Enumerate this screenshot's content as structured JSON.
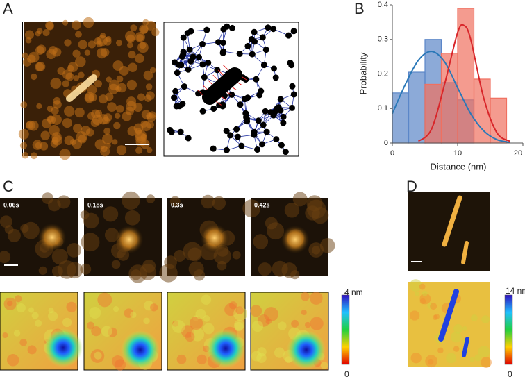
{
  "panel_labels": {
    "a": "A",
    "b": "B",
    "c": "C",
    "d": "D"
  },
  "panel_c": {
    "times": [
      "0.06s",
      "0.18s",
      "0.3s",
      "0.42s"
    ],
    "colorbar_max": "4 nm",
    "colorbar_min": "0"
  },
  "panel_d": {
    "colorbar_max": "14 nm",
    "colorbar_min": "0"
  },
  "chart_data": {
    "type": "histogram",
    "xlabel": "Distance (nm)",
    "ylabel": "Probability",
    "xlim": [
      0,
      20
    ],
    "xticks": [
      0,
      10,
      20
    ],
    "ylim": [
      0,
      0.4
    ],
    "yticks": [
      0,
      0.1,
      0.2,
      0.3,
      0.4
    ],
    "series": [
      {
        "color": "#5b86c8",
        "bins": [
          0,
          2.5,
          5,
          7.5,
          10,
          12.5
        ],
        "values": [
          0.145,
          0.205,
          0.3,
          0.175,
          0.125
        ]
      },
      {
        "color": "#f07060",
        "bins": [
          5,
          7.5,
          10,
          12.5,
          15,
          17.5
        ],
        "values": [
          0.17,
          0.26,
          0.39,
          0.185,
          0.13
        ]
      }
    ],
    "curves": [
      {
        "color": "#2a78b8",
        "x": [
          0,
          2,
          4,
          6,
          8,
          10,
          12,
          14,
          16,
          18
        ],
        "values": [
          0.085,
          0.17,
          0.24,
          0.265,
          0.235,
          0.16,
          0.085,
          0.035,
          0.01,
          0.002
        ]
      },
      {
        "color": "#d8262a",
        "x": [
          4,
          6,
          8,
          10,
          11,
          12,
          14,
          16,
          18
        ],
        "values": [
          0.005,
          0.04,
          0.17,
          0.32,
          0.34,
          0.3,
          0.13,
          0.03,
          0.005
        ]
      }
    ]
  }
}
